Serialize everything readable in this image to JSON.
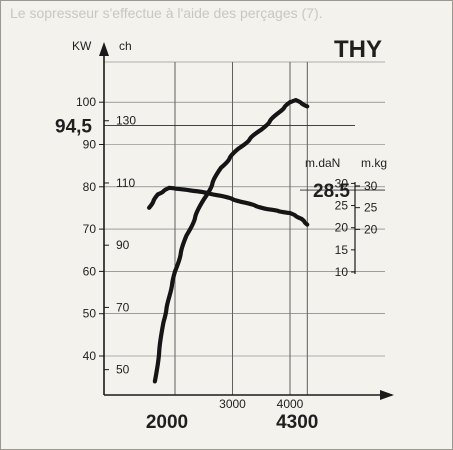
{
  "bleed_text": "Le sopresseur s'effectue à l'aide des perçages (7).",
  "chart_data": {
    "type": "line",
    "title": "THY",
    "x_axis": {
      "range": [
        1200,
        5000
      ],
      "ticks": [
        2000,
        3000,
        4000
      ],
      "emphasized_labels": [
        {
          "value": 2000,
          "label": "2000"
        },
        {
          "value": 4300,
          "label": "4300"
        }
      ]
    },
    "power_axis_kw": {
      "unit": "KW",
      "range": [
        26,
        105
      ],
      "ticks": [
        40,
        50,
        60,
        70,
        80,
        90,
        100
      ],
      "highlight": {
        "value": 94.5,
        "label": "94,5"
      }
    },
    "power_axis_ch": {
      "unit": "ch",
      "ticks": [
        50,
        70,
        90,
        110,
        130
      ]
    },
    "torque_axis_mdan": {
      "unit": "m.daN",
      "ticks": [
        10,
        15,
        20,
        25,
        30
      ],
      "highlight": {
        "value": 28.5,
        "label": "28.5"
      }
    },
    "torque_axis_mkg": {
      "unit": "m.kg",
      "ticks": [
        20,
        25,
        30
      ]
    },
    "series": [
      {
        "axis": "kw",
        "points": [
          [
            1650,
            34
          ],
          [
            1800,
            48
          ],
          [
            1900,
            54
          ],
          [
            2000,
            60
          ],
          [
            2200,
            68.5
          ],
          [
            2500,
            77
          ],
          [
            2800,
            84.5
          ],
          [
            3100,
            89
          ],
          [
            3500,
            93.5
          ],
          [
            3800,
            97.5
          ],
          [
            4000,
            100
          ],
          [
            4100,
            100.5
          ],
          [
            4300,
            99
          ]
        ]
      },
      {
        "axis": "mdan",
        "points": [
          [
            1550,
            24.5
          ],
          [
            1700,
            27.5
          ],
          [
            1900,
            29
          ],
          [
            2100,
            28.7
          ],
          [
            2400,
            28.2
          ],
          [
            2800,
            27.2
          ],
          [
            3200,
            25.7
          ],
          [
            3600,
            24.2
          ],
          [
            4000,
            23.3
          ],
          [
            4200,
            22
          ],
          [
            4300,
            20.7
          ]
        ]
      }
    ],
    "grid": true,
    "annotations": [
      "94,5",
      "28.5"
    ]
  }
}
